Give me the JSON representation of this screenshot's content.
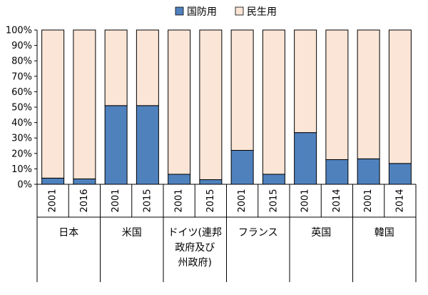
{
  "chart_data": {
    "type": "bar",
    "stacked": "percent",
    "legend_position": "top-center",
    "grid": false,
    "ylim": [
      0,
      100
    ],
    "yticks": [
      "0%",
      "10%",
      "20%",
      "30%",
      "40%",
      "50%",
      "60%",
      "70%",
      "80%",
      "90%",
      "100%"
    ],
    "categories": [
      "2001",
      "2016",
      "2001",
      "2015",
      "2001",
      "2015",
      "2001",
      "2015",
      "2001",
      "2014",
      "2001",
      "2014"
    ],
    "groups": [
      {
        "lines": [
          "日本"
        ],
        "count": 2
      },
      {
        "lines": [
          "米国"
        ],
        "count": 2
      },
      {
        "lines": [
          "ドイツ(連邦",
          "政府及び",
          "州政府)"
        ],
        "count": 2
      },
      {
        "lines": [
          "フランス"
        ],
        "count": 2
      },
      {
        "lines": [
          "英国"
        ],
        "count": 2
      },
      {
        "lines": [
          "韓国"
        ],
        "count": 2
      }
    ],
    "series": [
      {
        "name": "国防用",
        "color": "#4f81bd",
        "values": [
          4,
          3.5,
          51,
          51,
          6.5,
          3,
          22,
          6.5,
          33.5,
          16,
          16.5,
          13.5
        ]
      },
      {
        "name": "民生用",
        "color": "#fbe5d6",
        "values": [
          96,
          96.5,
          49,
          49,
          93.5,
          97,
          78,
          93.5,
          66.5,
          84,
          83.5,
          86.5
        ]
      }
    ]
  }
}
